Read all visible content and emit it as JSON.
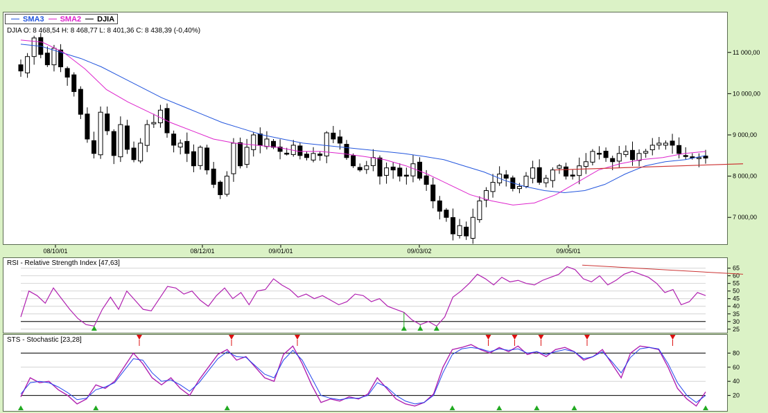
{
  "legend": {
    "items": [
      {
        "label": "SMA3",
        "color": "#2255dd"
      },
      {
        "label": "SMA2",
        "color": "#dd22cc"
      },
      {
        "label": "DJIA",
        "color": "#000000"
      }
    ]
  },
  "price_panel": {
    "header": "DJIA O: 8 468,54  H: 8 468,77  L: 8 401,36  C: 8 438,39  (-0,40%)"
  },
  "rsi_panel": {
    "header": "RSI - Relative Strength Index [47,63]"
  },
  "sts_panel": {
    "header": "STS - Stochastic [23,28]"
  },
  "colors": {
    "background": "#dbf2c6",
    "candle": "#000000",
    "sma_long": "#2255dd",
    "sma_short": "#dd22cc",
    "trendline": "#cc3333",
    "rsi": "#b020b0",
    "sts_k": "#b020b0",
    "sts_d": "#2244ee",
    "buy_marker": "#22aa22",
    "sell_marker": "#dd1111"
  },
  "chart_data": [
    {
      "type": "candlestick",
      "title": "DJIA",
      "x_ticks": [
        "08/10/01",
        "08/12/01",
        "09/01/01",
        "09/03/02",
        "09/05/01"
      ],
      "y_ticks": [
        "11 000,00",
        "10 000,00",
        "9 000,00",
        "8 000,00",
        "7 000,00"
      ],
      "y_values": [
        11000,
        10000,
        9000,
        8000,
        7000
      ],
      "ylim": [
        6400,
        11600
      ],
      "last_bar": {
        "open": 8468.54,
        "high": 8468.77,
        "low": 8401.36,
        "close": 8438.39,
        "change_pct": -0.4
      },
      "closes": [
        10550,
        10900,
        11350,
        10950,
        10700,
        11100,
        10650,
        10400,
        10050,
        9500,
        8900,
        8550,
        9550,
        9100,
        8500,
        9250,
        8650,
        8400,
        8800,
        9250,
        9300,
        9600,
        9050,
        8750,
        8800,
        8550,
        8250,
        8700,
        8150,
        7800,
        7550,
        8000,
        8800,
        8250,
        8700,
        9000,
        8750,
        8900,
        8700,
        8600,
        8550,
        8750,
        8500,
        8450,
        8550,
        8500,
        9050,
        8900,
        8800,
        8450,
        8250,
        8150,
        8250,
        8450,
        8000,
        8200,
        8150,
        8000,
        8000,
        8300,
        7950,
        7800,
        7400,
        7150,
        7000,
        6600,
        6800,
        6550,
        7000,
        7400,
        7650,
        7850,
        8050,
        7950,
        7700,
        7750,
        8000,
        8200,
        7850,
        7950,
        8150,
        8250,
        8000,
        8000,
        8250,
        8350,
        8600,
        8550,
        8450,
        8350,
        8550,
        8600,
        8400,
        8550,
        8600,
        8750,
        8800,
        8800,
        8750,
        8550,
        8500,
        8450,
        8450,
        8438
      ],
      "series": [
        {
          "name": "SMA3",
          "values": [
            11200,
            11150,
            11000,
            10850,
            10650,
            10400,
            10150,
            9900,
            9700,
            9500,
            9300,
            9150,
            9000,
            8900,
            8800,
            8750,
            8700,
            8650,
            8600,
            8550,
            8480,
            8400,
            8250,
            8100,
            7900,
            7750,
            7650,
            7600,
            7650,
            7800,
            8050,
            8250,
            8350,
            8400,
            8500
          ]
        },
        {
          "name": "SMA2",
          "values": [
            11300,
            11250,
            11000,
            10600,
            10100,
            9800,
            9550,
            9300,
            9100,
            8900,
            8800,
            8750,
            8700,
            8600,
            8600,
            8550,
            8480,
            8400,
            8250,
            8050,
            7800,
            7550,
            7400,
            7300,
            7350,
            7550,
            7850,
            8150,
            8300,
            8400,
            8450,
            8550,
            8600
          ]
        }
      ],
      "trendline": {
        "from": {
          "x": "09/05/01",
          "y": 8150
        },
        "to": {
          "x": "end",
          "y": 8300
        }
      }
    },
    {
      "type": "line",
      "title": "RSI - Relative Strength Index [47,63]",
      "y_ticks": [
        25,
        30,
        35,
        40,
        45,
        50,
        55,
        60,
        65
      ],
      "ylim": [
        24,
        68
      ],
      "levels": [
        30
      ],
      "values": [
        33,
        50,
        47,
        42,
        52,
        45,
        38,
        32,
        28,
        27,
        38,
        46,
        38,
        50,
        44,
        38,
        37,
        45,
        53,
        52,
        48,
        50,
        44,
        40,
        47,
        52,
        45,
        49,
        41,
        50,
        51,
        58,
        54,
        51,
        46,
        48,
        45,
        47,
        44,
        41,
        43,
        48,
        47,
        43,
        45,
        40,
        38,
        36,
        31,
        28,
        30,
        27,
        33,
        46,
        50,
        55,
        61,
        58,
        54,
        59,
        56,
        57,
        55,
        54,
        57,
        59,
        61,
        66,
        64,
        58,
        56,
        60,
        54,
        57,
        61,
        63,
        61,
        59,
        55,
        49,
        51,
        41,
        43,
        49,
        47
      ],
      "trendline": {
        "from": 67,
        "to": 61
      },
      "markers": [
        {
          "i": 9,
          "kind": "buy"
        },
        {
          "i": 47,
          "kind": "buy"
        },
        {
          "i": 49,
          "kind": "buy"
        },
        {
          "i": 51,
          "kind": "buy"
        }
      ]
    },
    {
      "type": "line",
      "title": "STS - Stochastic [23,28]",
      "y_ticks": [
        20,
        40,
        60,
        80
      ],
      "ylim": [
        0,
        100
      ],
      "levels": [
        20,
        80
      ],
      "series": [
        {
          "name": "%K",
          "values": [
            18,
            45,
            38,
            40,
            28,
            20,
            8,
            15,
            35,
            30,
            40,
            60,
            80,
            65,
            45,
            35,
            45,
            30,
            20,
            42,
            60,
            78,
            85,
            70,
            75,
            60,
            45,
            40,
            78,
            90,
            65,
            35,
            10,
            15,
            12,
            18,
            15,
            22,
            45,
            30,
            15,
            8,
            5,
            10,
            22,
            60,
            85,
            88,
            92,
            85,
            80,
            88,
            82,
            90,
            78,
            82,
            75,
            85,
            88,
            82,
            70,
            75,
            85,
            65,
            45,
            80,
            90,
            88,
            85,
            60,
            30,
            15,
            5,
            25
          ]
        },
        {
          "name": "%D",
          "values": [
            22,
            38,
            40,
            38,
            32,
            24,
            14,
            16,
            28,
            32,
            38,
            55,
            72,
            70,
            52,
            40,
            42,
            35,
            26,
            38,
            55,
            72,
            82,
            75,
            74,
            62,
            50,
            45,
            70,
            84,
            70,
            45,
            20,
            16,
            14,
            16,
            16,
            20,
            38,
            32,
            20,
            12,
            8,
            10,
            20,
            52,
            78,
            86,
            88,
            86,
            82,
            86,
            84,
            86,
            80,
            82,
            78,
            82,
            85,
            82,
            72,
            75,
            82,
            68,
            52,
            74,
            86,
            88,
            86,
            65,
            38,
            20,
            10,
            20
          ]
        }
      ],
      "buy_markers": [
        0,
        8,
        22,
        46,
        51,
        55,
        59,
        73
      ],
      "sell_markers": [
        18,
        32,
        42,
        71,
        75,
        79,
        86,
        99
      ]
    }
  ]
}
